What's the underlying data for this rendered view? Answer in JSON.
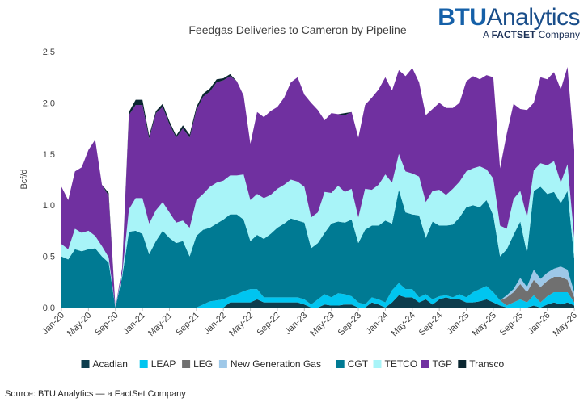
{
  "brand": {
    "main_strong": "BTU",
    "main_rest": "Analytics",
    "sub_prefix": "A ",
    "sub_strong": "FACTSET",
    "sub_rest": " Company"
  },
  "source": "Source: BTU Analytics — a FactSet Company",
  "chart_data": {
    "type": "area",
    "stacked": true,
    "title": "Feedgas Deliveries to Cameron by Pipeline",
    "ylabel": "Bcf/d",
    "xlabel": "",
    "ylim": [
      0,
      2.5
    ],
    "yticks": [
      "0.0",
      "0.5",
      "1.0",
      "1.5",
      "2.0",
      "2.5"
    ],
    "grid": false,
    "legend_position": "bottom",
    "x_tick_labels": [
      "Jan-20",
      "May-20",
      "Sep-20",
      "Jan-21",
      "May-21",
      "Sep-21",
      "Jan-22",
      "May-22",
      "Sep-22",
      "Jan-23",
      "May-23",
      "Sep-23",
      "Jan-24",
      "May-24",
      "Sep-24",
      "Jan-25",
      "May-25",
      "Sep-25",
      "Jan-26",
      "May-26"
    ],
    "x_start": "2020-01",
    "num_points": 77,
    "series": [
      {
        "name": "Acadian",
        "color": "#0d3d4d",
        "values": [
          0,
          0,
          0,
          0,
          0,
          0,
          0,
          0,
          0,
          0,
          0,
          0,
          0,
          0,
          0,
          0,
          0,
          0,
          0,
          0,
          0,
          0,
          0,
          0,
          0,
          0.05,
          0.05,
          0.05,
          0.05,
          0.08,
          0.05,
          0.05,
          0.05,
          0.05,
          0.05,
          0.05,
          0.03,
          0,
          0,
          0.03,
          0.02,
          0.02,
          0.03,
          0.03,
          0,
          0,
          0.05,
          0.03,
          0,
          0.05,
          0.12,
          0.1,
          0.1,
          0.05,
          0.08,
          0.03,
          0.08,
          0.1,
          0.08,
          0.08,
          0.05,
          0.05,
          0.06,
          0.08,
          0.05,
          0.02,
          0,
          0,
          0,
          0,
          0.02,
          0,
          0.03,
          0.05,
          0.03,
          0.05,
          0.02
        ]
      },
      {
        "name": "LEAP",
        "color": "#00c5f0",
        "values": [
          0,
          0,
          0,
          0,
          0,
          0,
          0,
          0,
          0,
          0,
          0,
          0,
          0,
          0,
          0,
          0,
          0,
          0,
          0,
          0,
          0,
          0.03,
          0.06,
          0.07,
          0.08,
          0.06,
          0.08,
          0.11,
          0.13,
          0.1,
          0.05,
          0.05,
          0.05,
          0.05,
          0.05,
          0.05,
          0.05,
          0.03,
          0.08,
          0.1,
          0.08,
          0.12,
          0.1,
          0.08,
          0.05,
          0.03,
          0.05,
          0.05,
          0.05,
          0.12,
          0.12,
          0.08,
          0.08,
          0.05,
          0.05,
          0.05,
          0.03,
          0.02,
          0.02,
          0.05,
          0.05,
          0.1,
          0.12,
          0.13,
          0.1,
          0.05,
          0.02,
          0.05,
          0.08,
          0.05,
          0.1,
          0.05,
          0.08,
          0.1,
          0.12,
          0.1,
          0.03
        ]
      },
      {
        "name": "LEG",
        "color": "#707070",
        "values": [
          0,
          0,
          0,
          0,
          0,
          0,
          0,
          0,
          0,
          0,
          0,
          0,
          0,
          0,
          0,
          0,
          0,
          0,
          0,
          0,
          0,
          0,
          0,
          0,
          0,
          0,
          0,
          0,
          0,
          0,
          0,
          0,
          0,
          0,
          0,
          0,
          0,
          0,
          0,
          0,
          0,
          0,
          0,
          0,
          0,
          0,
          0,
          0,
          0,
          0,
          0,
          0,
          0,
          0,
          0,
          0,
          0,
          0,
          0,
          0,
          0,
          0,
          0,
          0,
          0,
          0,
          0.08,
          0.1,
          0.15,
          0.1,
          0.15,
          0.15,
          0.15,
          0.15,
          0.15,
          0.12,
          0.05
        ]
      },
      {
        "name": "New Generation Gas",
        "color": "#9ec8e8",
        "values": [
          0,
          0,
          0,
          0,
          0,
          0,
          0,
          0,
          0,
          0,
          0,
          0,
          0,
          0,
          0,
          0,
          0,
          0,
          0,
          0,
          0,
          0,
          0,
          0,
          0,
          0,
          0,
          0,
          0,
          0,
          0,
          0,
          0,
          0,
          0,
          0,
          0,
          0,
          0,
          0,
          0,
          0,
          0,
          0,
          0,
          0,
          0,
          0,
          0,
          0,
          0,
          0,
          0,
          0,
          0,
          0,
          0,
          0,
          0,
          0,
          0,
          0,
          0,
          0,
          0,
          0,
          0.02,
          0.03,
          0.06,
          0.05,
          0.1,
          0.08,
          0.08,
          0.08,
          0.1,
          0.1,
          0.05
        ]
      },
      {
        "name": "CGT",
        "color": "#007a93",
        "values": [
          0.5,
          0.47,
          0.57,
          0.55,
          0.57,
          0.58,
          0.5,
          0.44,
          0,
          0.3,
          0.74,
          0.75,
          0.72,
          0.52,
          0.65,
          0.75,
          0.68,
          0.63,
          0.65,
          0.5,
          0.7,
          0.73,
          0.72,
          0.75,
          0.78,
          0.8,
          0.78,
          0.7,
          0.47,
          0.53,
          0.57,
          0.62,
          0.68,
          0.72,
          0.77,
          0.75,
          0.75,
          0.55,
          0.55,
          0.6,
          0.72,
          0.7,
          0.7,
          0.75,
          0.58,
          0.73,
          0.7,
          0.72,
          0.8,
          0.65,
          0.91,
          0.75,
          0.73,
          0.8,
          0.55,
          0.76,
          0.69,
          0.68,
          0.71,
          0.75,
          0.88,
          0.85,
          0.8,
          0.84,
          0.75,
          0.43,
          0.45,
          0.53,
          0.55,
          0.33,
          0.77,
          0.9,
          0.77,
          0.75,
          0.62,
          0.77,
          0.33
        ]
      },
      {
        "name": "TETCO",
        "color": "#a8f4f8",
        "values": [
          0.12,
          0.1,
          0.2,
          0.18,
          0.18,
          0.12,
          0.1,
          0.05,
          0,
          0.03,
          0.22,
          0.32,
          0.35,
          0.3,
          0.3,
          0.28,
          0.25,
          0.2,
          0.2,
          0.28,
          0.35,
          0.35,
          0.4,
          0.4,
          0.38,
          0.38,
          0.38,
          0.44,
          0.4,
          0.4,
          0.4,
          0.38,
          0.38,
          0.38,
          0.38,
          0.38,
          0.35,
          0.3,
          0.3,
          0.4,
          0.3,
          0.35,
          0.3,
          0.3,
          0.25,
          0.4,
          0.35,
          0.4,
          0.45,
          0.4,
          0.35,
          0.4,
          0.4,
          0.38,
          0.35,
          0.3,
          0.35,
          0.3,
          0.35,
          0.35,
          0.35,
          0.36,
          0.4,
          0.3,
          0.36,
          0.3,
          0.2,
          0.35,
          0.3,
          0.35,
          0.2,
          0.23,
          0.28,
          0.3,
          0.2,
          0.26,
          0.2
        ]
      },
      {
        "name": "TGP",
        "color": "#7030a0",
        "values": [
          0.56,
          0.48,
          0.56,
          0.64,
          0.79,
          0.94,
          0.6,
          0.6,
          0,
          0.06,
          0.92,
          0.91,
          0.91,
          0.83,
          0.95,
          0.93,
          0.86,
          0.83,
          0.9,
          0.88,
          0.88,
          0.95,
          0.93,
          0.98,
          0.98,
          0.97,
          0.92,
          0.77,
          0.55,
          0.8,
          0.79,
          0.82,
          0.8,
          0.85,
          0.95,
          1.02,
          0.9,
          1.12,
          1.0,
          0.7,
          0.78,
          0.7,
          0.75,
          0.75,
          0.78,
          0.82,
          0.9,
          0.93,
          0.95,
          0.9,
          0.82,
          0.93,
          1.03,
          0.92,
          0.85,
          0.8,
          0.85,
          0.85,
          0.79,
          0.77,
          0.88,
          0.9,
          0.85,
          0.92,
          0.99,
          0.56,
          0.93,
          0.93,
          0.8,
          1.05,
          0.66,
          0.84,
          0.84,
          0.87,
          0.91,
          0.95,
          0.86
        ]
      },
      {
        "name": "Transco",
        "color": "#0a2630",
        "values": [
          0,
          0,
          0,
          0,
          0,
          0,
          0,
          0.03,
          0,
          0,
          0.03,
          0.05,
          0.05,
          0.03,
          0.02,
          0.03,
          0.03,
          0.02,
          0.03,
          0.03,
          0.03,
          0.03,
          0.03,
          0.03,
          0.02,
          0.02,
          0,
          0,
          0,
          0,
          0,
          0,
          0,
          0,
          0,
          0,
          0,
          0,
          0,
          0,
          0,
          0,
          0.02,
          0,
          0,
          0,
          0,
          0,
          0,
          0,
          0,
          0,
          0,
          0,
          0,
          0,
          0,
          0,
          0,
          0,
          0,
          0,
          0,
          0,
          0,
          0,
          0,
          0,
          0,
          0,
          0,
          0,
          0,
          0,
          0,
          0,
          0
        ]
      }
    ]
  }
}
